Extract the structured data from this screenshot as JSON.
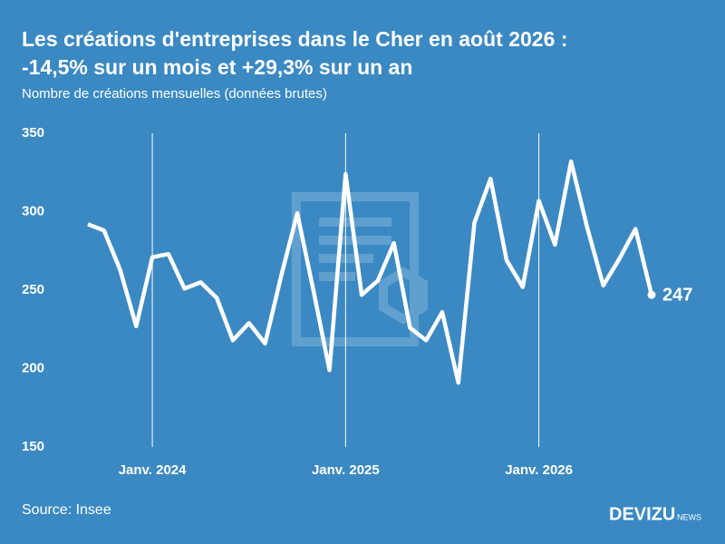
{
  "chart_data": {
    "type": "line",
    "title": "Les créations d'entreprises dans le Cher en août 2026 :",
    "title_line2": "-14,5% sur un mois et +29,3% sur un an",
    "subtitle": "Nombre de créations mensuelles (données brutes)",
    "source": "Source: Insee",
    "brand": "DEVIZU",
    "brand_suffix": "NEWS",
    "categories": [
      null,
      null,
      null,
      null,
      "Janv. 2024",
      null,
      null,
      null,
      null,
      null,
      null,
      null,
      null,
      null,
      null,
      null,
      "Janv. 2025",
      null,
      null,
      null,
      null,
      null,
      null,
      null,
      null,
      null,
      null,
      null,
      "Janv. 2026",
      null,
      null,
      null,
      null,
      null,
      null,
      null
    ],
    "series": [
      {
        "name": "Créations",
        "color": "#ffffff",
        "values": [
          292,
          288,
          263,
          227,
          271,
          273,
          251,
          255,
          245,
          218,
          229,
          216,
          259,
          299,
          250,
          199,
          324,
          247,
          256,
          280,
          226,
          218,
          236,
          191,
          293,
          321,
          269,
          252,
          307,
          279,
          332,
          290,
          253,
          270,
          289,
          247
        ]
      }
    ],
    "ylim": [
      150,
      350
    ],
    "yticks": [
      150,
      200,
      250,
      300,
      350
    ]
  }
}
